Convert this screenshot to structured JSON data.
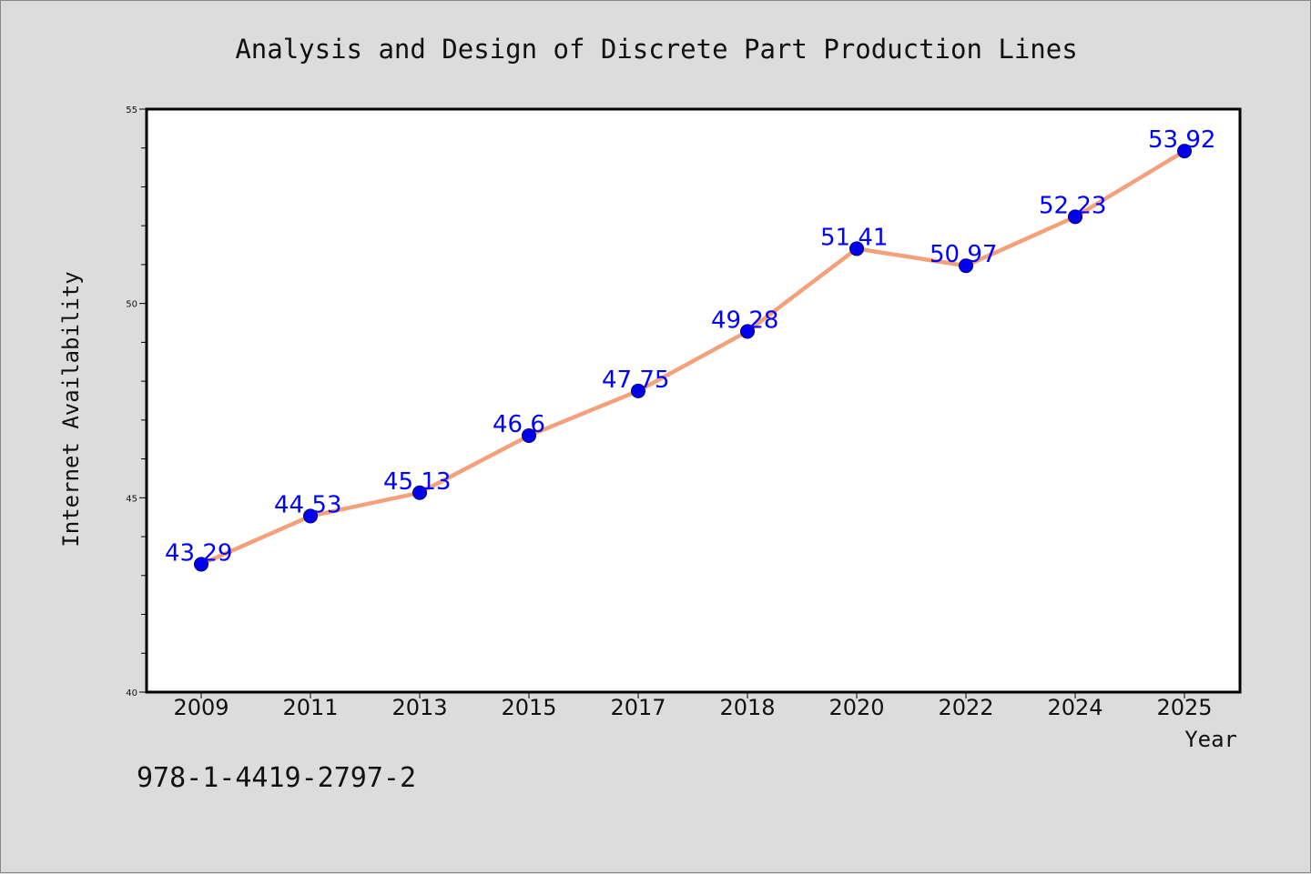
{
  "footer_code": "978-1-4419-2797-2",
  "colors": {
    "background": "#dcdcdc",
    "plot_background": "#ffffff",
    "line": "#f4a07a",
    "marker": "#0000ee",
    "data_label": "#0000ff",
    "axis": "#000000"
  },
  "chart_data": {
    "type": "line",
    "title": "Analysis and Design of Discrete Part Production Lines",
    "xlabel": "Year",
    "ylabel": "Internet Availability",
    "categories": [
      "2009",
      "2011",
      "2013",
      "2015",
      "2017",
      "2018",
      "2020",
      "2022",
      "2024",
      "2025"
    ],
    "series": [
      {
        "values": [
          43.29,
          44.53,
          45.13,
          46.6,
          47.75,
          49.28,
          51.41,
          50.97,
          52.23,
          53.92
        ],
        "labels": [
          "43.29",
          "44.53",
          "45.13",
          "46.6",
          "47.75",
          "49.28",
          "51.41",
          "50.97",
          "52.23",
          "53.92"
        ]
      }
    ],
    "ylim": [
      40,
      55
    ],
    "yticks": [
      "40",
      "45",
      "50",
      "55"
    ],
    "grid": false,
    "legend": "none"
  }
}
